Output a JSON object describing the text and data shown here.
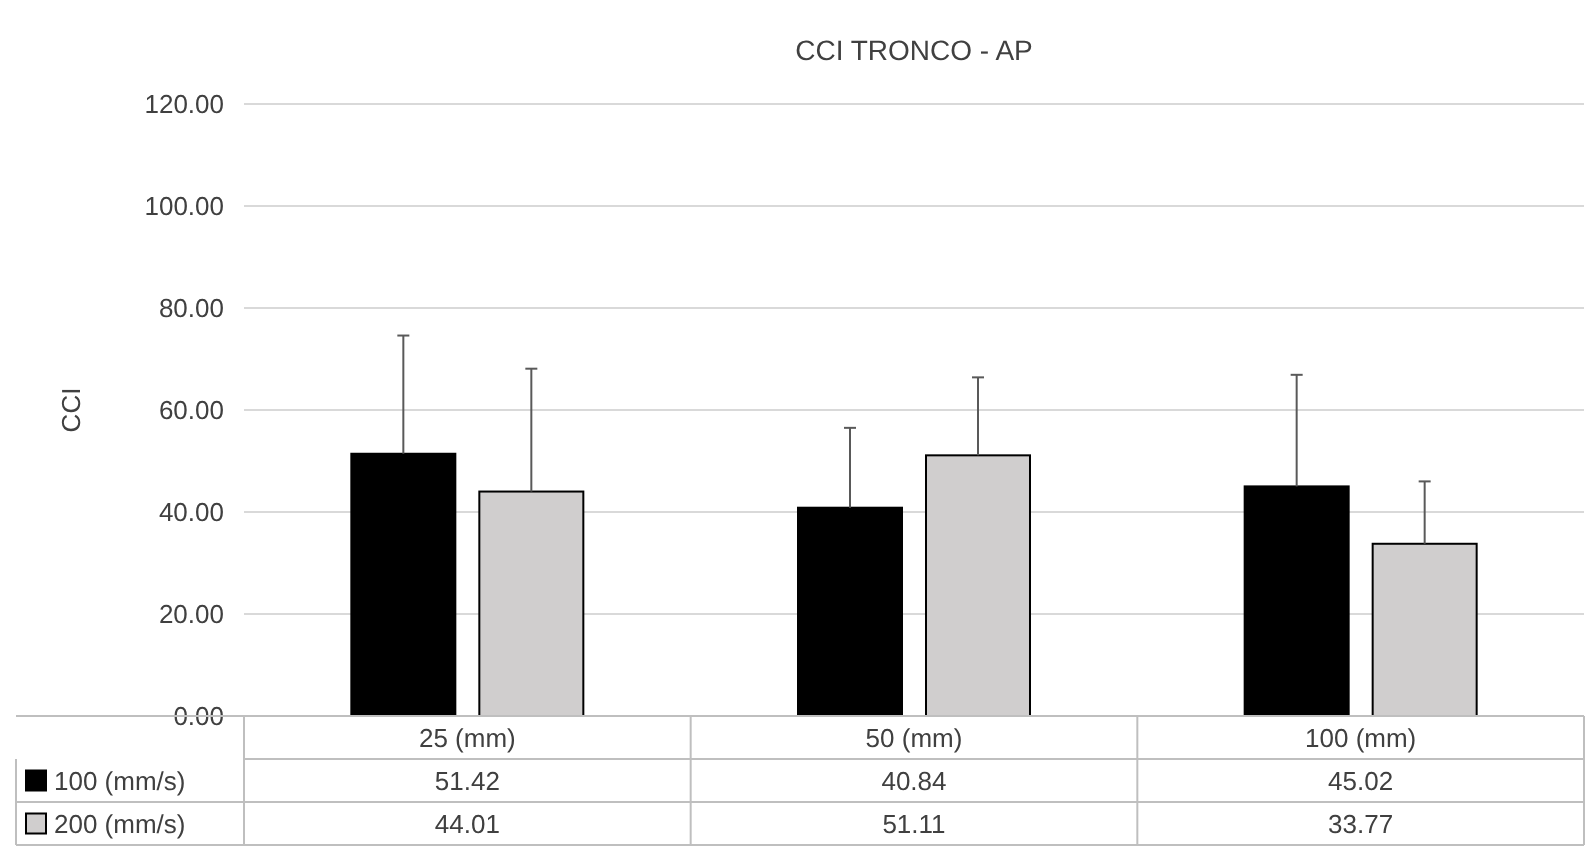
{
  "chart_data": {
    "type": "bar",
    "title": "CCI TRONCO  - AP",
    "ylabel": "CCI",
    "categories": [
      "25 (mm)",
      "50 (mm)",
      "100 (mm)"
    ],
    "series": [
      {
        "name": "100 (mm/s)",
        "color": "#000000",
        "values": [
          51.42,
          40.84,
          45.02
        ],
        "errors": [
          [
            51.42,
            74.6
          ],
          [
            40.84,
            56.5
          ],
          [
            45.02,
            66.9
          ]
        ]
      },
      {
        "name": "200 (mm/s)",
        "color": "#d0cece",
        "values": [
          44.01,
          51.11,
          33.77
        ],
        "errors": [
          [
            44.01,
            68.1
          ],
          [
            51.11,
            66.4
          ],
          [
            33.77,
            46.0
          ]
        ]
      }
    ],
    "ylim": [
      0,
      120
    ],
    "yticks": [
      {
        "value": 0,
        "label": "0.00"
      },
      {
        "value": 20,
        "label": "20.00"
      },
      {
        "value": 40,
        "label": "40.00"
      },
      {
        "value": 60,
        "label": "60.00"
      },
      {
        "value": 80,
        "label": "80.00"
      },
      {
        "value": 100,
        "label": "100.00"
      },
      {
        "value": 120,
        "label": "120.00"
      }
    ],
    "grid": "y",
    "legend": "bottom",
    "data_labels": true
  }
}
